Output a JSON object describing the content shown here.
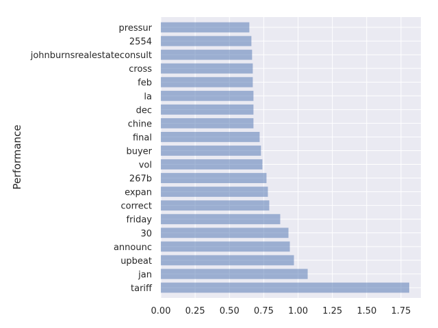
{
  "chart_data": {
    "type": "bar",
    "orientation": "horizontal",
    "categories": [
      "tariff",
      "jan",
      "upbeat",
      "announc",
      "30",
      "friday",
      "correct",
      "expan",
      "267b",
      "vol",
      "buyer",
      "final",
      "chine",
      "dec",
      "la",
      "feb",
      "cross",
      "johnburnsrealestateconsult",
      "2554",
      "pressur"
    ],
    "values": [
      1.81,
      1.07,
      0.97,
      0.94,
      0.93,
      0.87,
      0.79,
      0.78,
      0.77,
      0.74,
      0.73,
      0.72,
      0.675,
      0.675,
      0.675,
      0.67,
      0.67,
      0.665,
      0.66,
      0.645
    ],
    "xlabel": "",
    "ylabel": "Performance",
    "xlim": [
      0,
      1.895
    ],
    "xticks": [
      "0.00",
      "0.25",
      "0.50",
      "0.75",
      "1.00",
      "1.25",
      "1.50",
      "1.75"
    ],
    "grid": true,
    "colors": {
      "bar": "#4c72b0",
      "background": "#eaeaf2",
      "grid": "#ffffff"
    }
  }
}
